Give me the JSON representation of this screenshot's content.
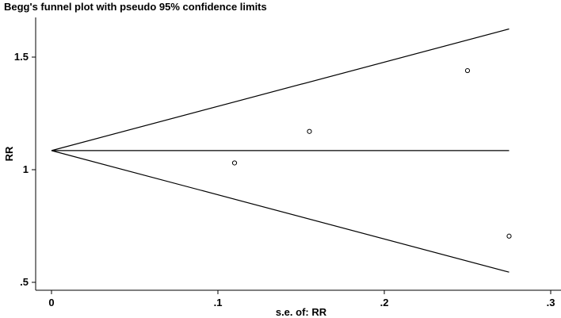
{
  "chart_data": {
    "type": "scatter",
    "title": "Begg's funnel plot with pseudo 95% confidence limits",
    "xlabel": "s.e. of: RR",
    "ylabel": "RR",
    "xlim": [
      0,
      0.3
    ],
    "ylim": [
      0.5,
      1.65
    ],
    "xticks": [
      {
        "value": 0,
        "label": "0"
      },
      {
        "value": 0.1,
        "label": ".1"
      },
      {
        "value": 0.2,
        "label": ".2"
      },
      {
        "value": 0.3,
        "label": ".3"
      }
    ],
    "yticks": [
      {
        "value": 0.5,
        "label": ".5"
      },
      {
        "value": 1,
        "label": "1"
      },
      {
        "value": 1.5,
        "label": "1.5"
      }
    ],
    "grid": false,
    "legend": "none",
    "pooled_estimate": 1.085,
    "se_max": 0.275,
    "upper_limit_end": 1.625,
    "lower_limit_end": 0.545,
    "points": [
      {
        "x": 0.11,
        "y": 1.03
      },
      {
        "x": 0.155,
        "y": 1.17
      },
      {
        "x": 0.25,
        "y": 1.44
      },
      {
        "x": 0.275,
        "y": 0.705
      }
    ],
    "colors": {
      "line": "#000000",
      "marker": "#000000",
      "background": "#ffffff"
    }
  }
}
